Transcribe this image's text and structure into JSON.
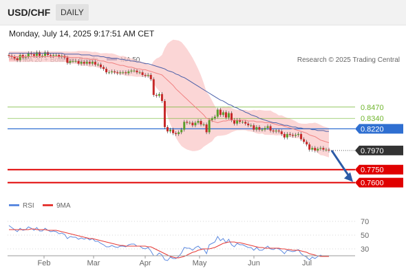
{
  "header": {
    "symbol": "USD/CHF",
    "timeframe": "DAILY"
  },
  "datetime": "Monday, July 14, 2025 9:17:51 AM CET",
  "credit": "Research © 2025 Trading Central",
  "colors": {
    "ma20": "#f08080",
    "ma50": "#4a5fa8",
    "bands": "#f9c8c8",
    "up": "#5a9e2a",
    "down": "#c62828",
    "level_green": "#6fb52c",
    "level_blue": "#2f6fd1",
    "level_red": "#e00000",
    "price_tag": "#333333",
    "rsi": "#5c8ae0",
    "rsi_ma": "#e53935",
    "arrow": "#2b5aa6"
  },
  "chart_data": [
    {
      "type": "candlestick",
      "legend": [
        "MA 20 + Bollinger Bands",
        "MA 50"
      ],
      "ylim": [
        0.755,
        0.8935
      ],
      "x_months": [
        "Feb",
        "Mar",
        "Apr",
        "May",
        "Jun",
        "Jul"
      ],
      "levels": [
        {
          "value": 0.847,
          "label": "0.8470",
          "kind": "resistance-minor"
        },
        {
          "value": 0.834,
          "label": "0.8340",
          "kind": "resistance-minor"
        },
        {
          "value": 0.822,
          "label": "0.8220",
          "kind": "pivot"
        },
        {
          "value": 0.775,
          "label": "0.7750",
          "kind": "target"
        },
        {
          "value": 0.76,
          "label": "0.7600",
          "kind": "target"
        }
      ],
      "last_price": {
        "value": 0.797,
        "label": "0.7970"
      },
      "forecast_arrow": {
        "from": 0.797,
        "to": 0.7625,
        "direction": "down"
      },
      "close_series": [
        0.906,
        0.905,
        0.903,
        0.901,
        0.907,
        0.904,
        0.905,
        0.909,
        0.908,
        0.906,
        0.91,
        0.906,
        0.906,
        0.91,
        0.907,
        0.906,
        0.907,
        0.907,
        0.905,
        0.906,
        0.904,
        0.898,
        0.9,
        0.9,
        0.9,
        0.897,
        0.899,
        0.897,
        0.899,
        0.897,
        0.899,
        0.896,
        0.896,
        0.893,
        0.891,
        0.887,
        0.887,
        0.888,
        0.887,
        0.886,
        0.887,
        0.887,
        0.886,
        0.888,
        0.889,
        0.889,
        0.887,
        0.887,
        0.884,
        0.883,
        0.884,
        0.879,
        0.861,
        0.86,
        0.862,
        0.854,
        0.824,
        0.819,
        0.821,
        0.817,
        0.816,
        0.818,
        0.821,
        0.83,
        0.829,
        0.829,
        0.826,
        0.829,
        0.831,
        0.827,
        0.827,
        0.818,
        0.832,
        0.834,
        0.836,
        0.844,
        0.838,
        0.841,
        0.835,
        0.84,
        0.832,
        0.828,
        0.832,
        0.83,
        0.83,
        0.828,
        0.826,
        0.826,
        0.821,
        0.824,
        0.821,
        0.821,
        0.823,
        0.825,
        0.82,
        0.819,
        0.82,
        0.819,
        0.816,
        0.812,
        0.816,
        0.815,
        0.814,
        0.815,
        0.816,
        0.81,
        0.807,
        0.804,
        0.798,
        0.8,
        0.797,
        0.799,
        0.8,
        0.798,
        0.798,
        0.797
      ],
      "ma20": [
        0.905,
        0.905,
        0.905,
        0.905,
        0.905,
        0.905,
        0.905,
        0.905,
        0.905,
        0.905,
        0.905,
        0.905,
        0.905,
        0.905,
        0.905,
        0.905,
        0.905,
        0.905,
        0.905,
        0.905,
        0.905,
        0.905,
        0.904,
        0.904,
        0.904,
        0.904,
        0.903,
        0.903,
        0.903,
        0.902,
        0.902,
        0.902,
        0.901,
        0.9,
        0.9,
        0.899,
        0.898,
        0.898,
        0.897,
        0.896,
        0.895,
        0.895,
        0.894,
        0.893,
        0.893,
        0.892,
        0.891,
        0.891,
        0.89,
        0.89,
        0.889,
        0.888,
        0.887,
        0.886,
        0.885,
        0.884,
        0.881,
        0.878,
        0.875,
        0.872,
        0.868,
        0.865,
        0.862,
        0.859,
        0.856,
        0.853,
        0.85,
        0.847,
        0.844,
        0.841,
        0.838,
        0.834,
        0.833,
        0.831,
        0.83,
        0.829,
        0.83,
        0.831,
        0.831,
        0.832,
        0.832,
        0.832,
        0.832,
        0.832,
        0.832,
        0.832,
        0.831,
        0.831,
        0.831,
        0.83,
        0.83,
        0.83,
        0.829,
        0.829,
        0.829,
        0.828,
        0.827,
        0.826,
        0.826,
        0.825,
        0.824,
        0.823,
        0.822,
        0.821,
        0.82,
        0.819,
        0.818,
        0.817,
        0.815,
        0.814,
        0.813,
        0.811,
        0.809,
        0.808,
        0.807,
        0.806
      ],
      "ma50": [
        0.909,
        0.909,
        0.909,
        0.909,
        0.909,
        0.909,
        0.909,
        0.909,
        0.909,
        0.909,
        0.909,
        0.909,
        0.909,
        0.909,
        0.909,
        0.909,
        0.909,
        0.909,
        0.909,
        0.909,
        0.908,
        0.908,
        0.908,
        0.908,
        0.908,
        0.908,
        0.907,
        0.907,
        0.907,
        0.907,
        0.906,
        0.906,
        0.906,
        0.905,
        0.905,
        0.904,
        0.904,
        0.903,
        0.903,
        0.903,
        0.902,
        0.902,
        0.901,
        0.901,
        0.9,
        0.9,
        0.899,
        0.899,
        0.898,
        0.897,
        0.897,
        0.896,
        0.895,
        0.894,
        0.893,
        0.892,
        0.891,
        0.889,
        0.888,
        0.887,
        0.885,
        0.884,
        0.882,
        0.881,
        0.879,
        0.877,
        0.875,
        0.873,
        0.871,
        0.869,
        0.867,
        0.865,
        0.863,
        0.861,
        0.859,
        0.857,
        0.855,
        0.854,
        0.852,
        0.85,
        0.849,
        0.847,
        0.846,
        0.844,
        0.843,
        0.841,
        0.84,
        0.838,
        0.837,
        0.836,
        0.834,
        0.833,
        0.832,
        0.831,
        0.83,
        0.829,
        0.829,
        0.828,
        0.827,
        0.826,
        0.826,
        0.825,
        0.824,
        0.824,
        0.823,
        0.823,
        0.822,
        0.822,
        0.822,
        0.821,
        0.821,
        0.82,
        0.82,
        0.82,
        0.819,
        0.819
      ]
    },
    {
      "type": "line",
      "legend": [
        "RSI",
        "9MA"
      ],
      "ylim": [
        20,
        80
      ],
      "yticks": [
        "70",
        "50",
        "30"
      ],
      "rsi": [
        64,
        61,
        58,
        55,
        60,
        57,
        58,
        62,
        60,
        57,
        61,
        56,
        56,
        60,
        57,
        55,
        56,
        55,
        52,
        53,
        51,
        45,
        48,
        47,
        47,
        44,
        46,
        44,
        46,
        43,
        45,
        41,
        41,
        38,
        36,
        33,
        33,
        35,
        33,
        32,
        34,
        34,
        33,
        36,
        37,
        37,
        34,
        34,
        31,
        30,
        32,
        27,
        20,
        20,
        24,
        21,
        14,
        13,
        18,
        16,
        16,
        19,
        24,
        32,
        31,
        31,
        28,
        32,
        34,
        30,
        30,
        23,
        36,
        38,
        40,
        48,
        42,
        45,
        39,
        44,
        36,
        33,
        38,
        36,
        36,
        34,
        32,
        32,
        28,
        32,
        28,
        28,
        31,
        34,
        30,
        29,
        31,
        30,
        27,
        23,
        28,
        27,
        26,
        27,
        29,
        23,
        20,
        18,
        14,
        18,
        16,
        19,
        21,
        19,
        20,
        19
      ],
      "rsi_ma": [
        58,
        58,
        58,
        58,
        58,
        58,
        58,
        58,
        59,
        59,
        58,
        58,
        58,
        58,
        57,
        57,
        57,
        57,
        56,
        55,
        54,
        53,
        52,
        51,
        50,
        49,
        48,
        47,
        46,
        45,
        45,
        44,
        43,
        42,
        41,
        40,
        39,
        38,
        37,
        36,
        35,
        35,
        34,
        34,
        34,
        34,
        34,
        34,
        34,
        34,
        33,
        33,
        31,
        29,
        27,
        25,
        23,
        21,
        19,
        18,
        17,
        17,
        18,
        19,
        21,
        23,
        25,
        26,
        28,
        29,
        30,
        30,
        30,
        31,
        32,
        34,
        36,
        38,
        39,
        40,
        40,
        40,
        39,
        39,
        38,
        37,
        36,
        35,
        34,
        33,
        32,
        32,
        31,
        31,
        31,
        31,
        31,
        31,
        30,
        30,
        29,
        29,
        28,
        28,
        28,
        27,
        26,
        25,
        23,
        22,
        21,
        20,
        19,
        19,
        19,
        19
      ]
    }
  ]
}
